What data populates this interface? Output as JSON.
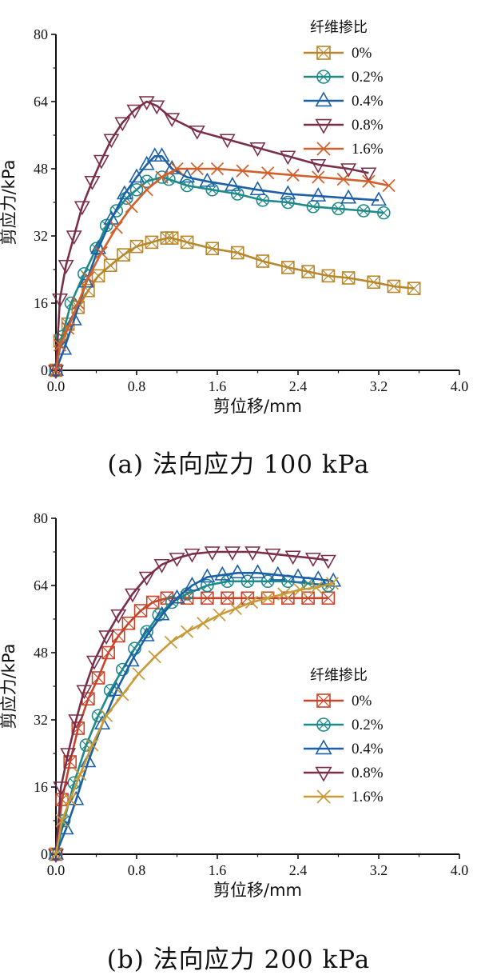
{
  "captions": [
    "(a) 法向应力 100 kPa",
    "(b) 法向应力 200 kPa"
  ],
  "colors": {
    "0%_a": "#b8862b",
    "0.2%": "#1f8a8a",
    "0.4%": "#1a5fa8",
    "0.8%": "#7b2e47",
    "1.6%_a": "#d2602c",
    "0%_b": "#c8442a",
    "1.6%_b": "#c79a3a"
  },
  "chart_data": [
    {
      "type": "line",
      "caption": "(a) 法向应力 100 kPa",
      "xlabel": "剪位移/mm",
      "ylabel": "剪应力/kPa",
      "xlim": [
        0,
        4.0
      ],
      "ylim": [
        0,
        80
      ],
      "xticks": [
        "0.0",
        "0.8",
        "1.6",
        "2.4",
        "3.2",
        "4.0"
      ],
      "yticks": [
        "0",
        "16",
        "32",
        "48",
        "64",
        "80"
      ],
      "legend_title": "纤维掺比",
      "legend_position": "top-right",
      "series": [
        {
          "name": "0%",
          "marker": "square-x",
          "x": [
            0,
            0.04,
            0.12,
            0.22,
            0.32,
            0.42,
            0.54,
            0.67,
            0.8,
            0.95,
            1.1,
            1.15,
            1.3,
            1.55,
            1.8,
            2.05,
            2.3,
            2.5,
            2.7,
            2.9,
            3.15,
            3.35,
            3.55
          ],
          "y": [
            0,
            7,
            11,
            15,
            19,
            22.5,
            25,
            27.5,
            29.5,
            30.5,
            31.5,
            31.5,
            30.5,
            29,
            28,
            26,
            24.5,
            23.5,
            22.5,
            22,
            21,
            20,
            19.5
          ]
        },
        {
          "name": "0.2%",
          "marker": "circle-x",
          "x": [
            0,
            0.06,
            0.15,
            0.28,
            0.4,
            0.5,
            0.6,
            0.7,
            0.8,
            0.9,
            1.05,
            1.12,
            1.3,
            1.55,
            1.8,
            2.05,
            2.3,
            2.55,
            2.8,
            3.05,
            3.25
          ],
          "y": [
            0,
            8,
            16,
            23,
            29,
            34.5,
            38,
            41,
            43,
            45,
            46,
            45.5,
            44,
            43,
            42,
            40.5,
            40,
            39,
            38.5,
            38,
            37.5
          ]
        },
        {
          "name": "0.4%",
          "marker": "triangle",
          "x": [
            0,
            0.08,
            0.18,
            0.3,
            0.42,
            0.55,
            0.68,
            0.8,
            0.9,
            0.98,
            1.05,
            1.15,
            1.3,
            1.5,
            1.75,
            2.0,
            2.3,
            2.6,
            2.9,
            3.2
          ],
          "y": [
            0,
            5,
            12,
            21,
            29,
            36,
            42,
            46,
            49,
            51,
            51,
            48,
            46,
            45,
            44,
            43,
            42,
            41.5,
            41,
            40.5
          ]
        },
        {
          "name": "0.8%",
          "marker": "triangle-down",
          "x": [
            0,
            0.04,
            0.1,
            0.18,
            0.26,
            0.36,
            0.45,
            0.55,
            0.66,
            0.78,
            0.9,
            1.0,
            1.15,
            1.4,
            1.7,
            2.0,
            2.3,
            2.6,
            2.9,
            3.1
          ],
          "y": [
            0,
            17,
            25,
            32,
            39,
            45,
            50,
            55,
            59,
            62,
            64,
            63,
            60,
            57,
            55,
            53,
            51,
            49,
            48,
            47
          ]
        },
        {
          "name": "1.6%",
          "marker": "x",
          "x": [
            0,
            0.04,
            0.12,
            0.22,
            0.32,
            0.45,
            0.6,
            0.75,
            0.9,
            1.05,
            1.2,
            1.4,
            1.6,
            1.85,
            2.1,
            2.35,
            2.6,
            2.85,
            3.1,
            3.3
          ],
          "y": [
            0,
            6,
            10,
            16,
            22,
            28,
            34,
            39,
            43,
            46,
            48,
            48,
            48,
            47.5,
            47,
            46.5,
            46,
            45.5,
            45,
            44
          ]
        }
      ]
    },
    {
      "type": "line",
      "caption": "(b) 法向应力 200 kPa",
      "xlabel": "剪位移/mm",
      "ylabel": "剪应力/kPa",
      "xlim": [
        0,
        4.0
      ],
      "ylim": [
        0,
        80
      ],
      "xticks": [
        "0.0",
        "0.8",
        "1.6",
        "2.4",
        "3.2",
        "4.0"
      ],
      "yticks": [
        "0",
        "16",
        "32",
        "48",
        "64",
        "80"
      ],
      "legend_title": "纤维掺比",
      "legend_position": "center-right",
      "series": [
        {
          "name": "0%",
          "marker": "square-x",
          "x": [
            0,
            0.06,
            0.14,
            0.22,
            0.32,
            0.42,
            0.52,
            0.62,
            0.72,
            0.84,
            0.96,
            1.1,
            1.3,
            1.5,
            1.7,
            1.9,
            2.1,
            2.3,
            2.5,
            2.7
          ],
          "y": [
            0,
            13,
            22,
            30,
            37,
            42,
            48,
            52,
            55,
            58,
            60,
            61,
            61,
            61,
            61,
            61,
            61,
            61,
            61,
            61
          ]
        },
        {
          "name": "0.2%",
          "marker": "circle-x",
          "x": [
            0,
            0.08,
            0.18,
            0.3,
            0.42,
            0.54,
            0.66,
            0.78,
            0.9,
            1.02,
            1.15,
            1.3,
            1.5,
            1.7,
            1.9,
            2.1,
            2.3,
            2.5,
            2.7
          ],
          "y": [
            0,
            8,
            17,
            26,
            33,
            39,
            44,
            49,
            53,
            57,
            60,
            62,
            64,
            65,
            65,
            65,
            65,
            64.5,
            64
          ]
        },
        {
          "name": "0.4%",
          "marker": "triangle",
          "x": [
            0,
            0.1,
            0.2,
            0.32,
            0.46,
            0.6,
            0.75,
            0.9,
            1.05,
            1.2,
            1.35,
            1.5,
            1.65,
            1.8,
            2.0,
            2.2,
            2.4,
            2.6,
            2.75
          ],
          "y": [
            0,
            6,
            13,
            22,
            31,
            39,
            46,
            52,
            57,
            61,
            64,
            66,
            66.5,
            67,
            67,
            66.5,
            66,
            65.5,
            65
          ]
        },
        {
          "name": "0.8%",
          "marker": "triangle-down",
          "x": [
            0,
            0.05,
            0.12,
            0.2,
            0.28,
            0.38,
            0.5,
            0.62,
            0.76,
            0.9,
            1.05,
            1.2,
            1.35,
            1.55,
            1.75,
            1.95,
            2.15,
            2.35,
            2.55,
            2.7
          ],
          "y": [
            0,
            16,
            24,
            32,
            39,
            46,
            52,
            57,
            62,
            66,
            69,
            70.5,
            71.5,
            72,
            72,
            72,
            71.5,
            71,
            70.5,
            70
          ]
        },
        {
          "name": "1.6%",
          "marker": "x",
          "x": [
            0,
            0.06,
            0.14,
            0.24,
            0.36,
            0.5,
            0.66,
            0.82,
            0.98,
            1.14,
            1.3,
            1.46,
            1.62,
            1.78,
            1.94,
            2.1,
            2.26,
            2.42,
            2.58,
            2.74
          ],
          "y": [
            0,
            8,
            13,
            19,
            26,
            33,
            38,
            43,
            47,
            50.5,
            53,
            55,
            57,
            58.5,
            60,
            61,
            62,
            63,
            63.5,
            64.5
          ]
        }
      ]
    }
  ]
}
